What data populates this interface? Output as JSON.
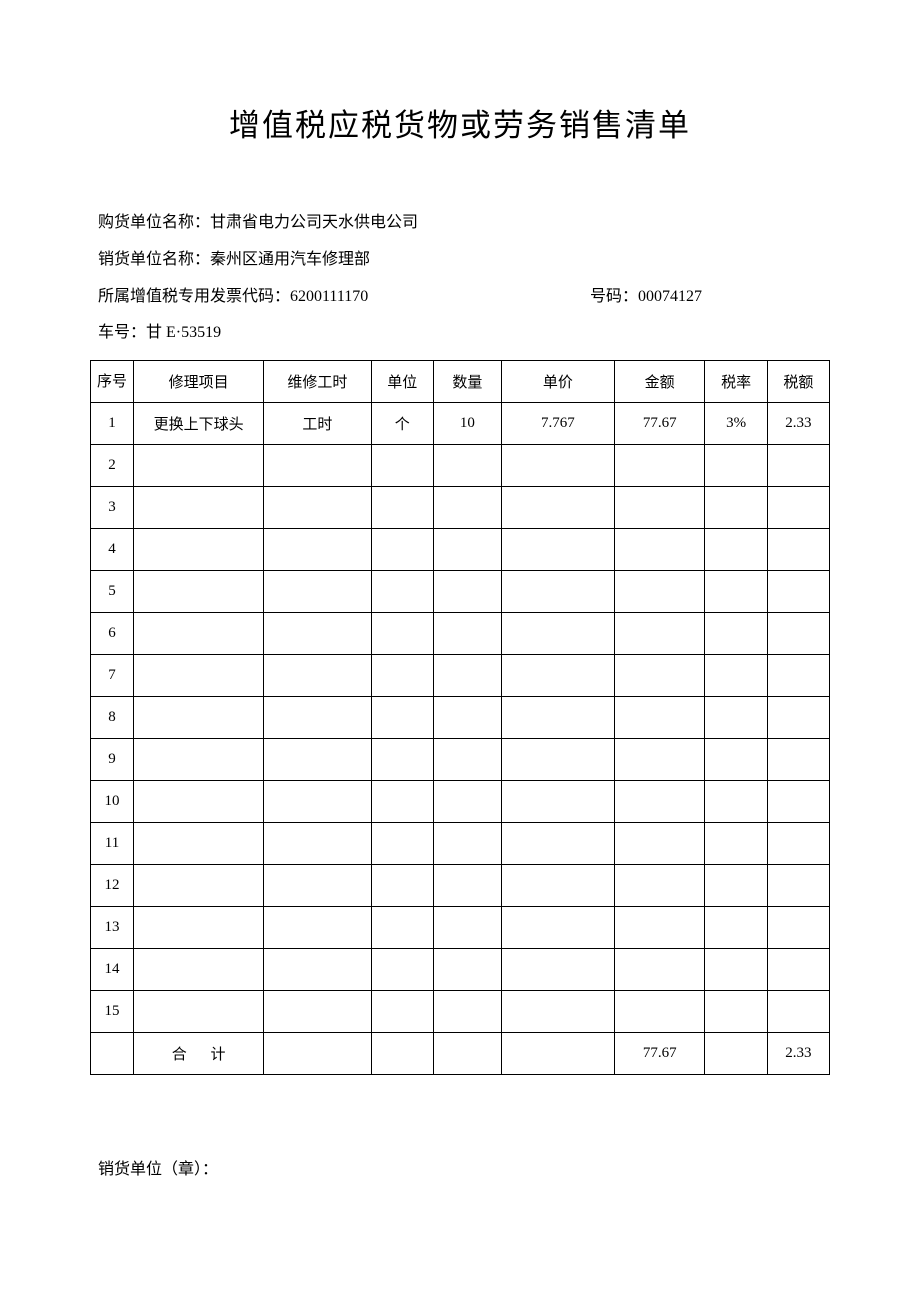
{
  "title": "增值税应税货物或劳务销售清单",
  "header": {
    "buyer_label": "购货单位名称：",
    "buyer_value": "甘肃省电力公司天水供电公司",
    "seller_label": "销货单位名称：",
    "seller_value": "秦州区通用汽车修理部",
    "invoice_code_label": "所属增值税专用发票代码：",
    "invoice_code_value": "6200111170",
    "invoice_num_label": "号码：",
    "invoice_num_value": "00074127",
    "vehicle_label": "车号：",
    "vehicle_value": "甘 E·53519"
  },
  "table": {
    "columns": {
      "seq": "序号",
      "item": "修理项目",
      "hours": "维修工时",
      "unit": "单位",
      "qty": "数量",
      "price": "单价",
      "amount": "金额",
      "rate": "税率",
      "tax": "税额"
    },
    "rows": [
      {
        "seq": "1",
        "item": "更换上下球头",
        "hours": "工时",
        "unit": "个",
        "qty": "10",
        "price": "7.767",
        "amount": "77.67",
        "rate": "3%",
        "tax": "2.33"
      },
      {
        "seq": "2",
        "item": "",
        "hours": "",
        "unit": "",
        "qty": "",
        "price": "",
        "amount": "",
        "rate": "",
        "tax": ""
      },
      {
        "seq": "3",
        "item": "",
        "hours": "",
        "unit": "",
        "qty": "",
        "price": "",
        "amount": "",
        "rate": "",
        "tax": ""
      },
      {
        "seq": "4",
        "item": "",
        "hours": "",
        "unit": "",
        "qty": "",
        "price": "",
        "amount": "",
        "rate": "",
        "tax": ""
      },
      {
        "seq": "5",
        "item": "",
        "hours": "",
        "unit": "",
        "qty": "",
        "price": "",
        "amount": "",
        "rate": "",
        "tax": ""
      },
      {
        "seq": "6",
        "item": "",
        "hours": "",
        "unit": "",
        "qty": "",
        "price": "",
        "amount": "",
        "rate": "",
        "tax": ""
      },
      {
        "seq": "7",
        "item": "",
        "hours": "",
        "unit": "",
        "qty": "",
        "price": "",
        "amount": "",
        "rate": "",
        "tax": ""
      },
      {
        "seq": "8",
        "item": "",
        "hours": "",
        "unit": "",
        "qty": "",
        "price": "",
        "amount": "",
        "rate": "",
        "tax": ""
      },
      {
        "seq": "9",
        "item": "",
        "hours": "",
        "unit": "",
        "qty": "",
        "price": "",
        "amount": "",
        "rate": "",
        "tax": ""
      },
      {
        "seq": "10",
        "item": "",
        "hours": "",
        "unit": "",
        "qty": "",
        "price": "",
        "amount": "",
        "rate": "",
        "tax": ""
      },
      {
        "seq": "11",
        "item": "",
        "hours": "",
        "unit": "",
        "qty": "",
        "price": "",
        "amount": "",
        "rate": "",
        "tax": ""
      },
      {
        "seq": "12",
        "item": "",
        "hours": "",
        "unit": "",
        "qty": "",
        "price": "",
        "amount": "",
        "rate": "",
        "tax": ""
      },
      {
        "seq": "13",
        "item": "",
        "hours": "",
        "unit": "",
        "qty": "",
        "price": "",
        "amount": "",
        "rate": "",
        "tax": ""
      },
      {
        "seq": "14",
        "item": "",
        "hours": "",
        "unit": "",
        "qty": "",
        "price": "",
        "amount": "",
        "rate": "",
        "tax": ""
      },
      {
        "seq": "15",
        "item": "",
        "hours": "",
        "unit": "",
        "qty": "",
        "price": "",
        "amount": "",
        "rate": "",
        "tax": ""
      }
    ],
    "total": {
      "label": "合  计",
      "amount": "77.67",
      "tax": "2.33"
    }
  },
  "footer": {
    "stamp_label": "销货单位（章）："
  },
  "style": {
    "page_bg": "#ffffff",
    "text_color": "#000000",
    "border_color": "#000000",
    "title_fontsize": 31,
    "body_fontsize": 16,
    "table_fontsize": 15
  }
}
